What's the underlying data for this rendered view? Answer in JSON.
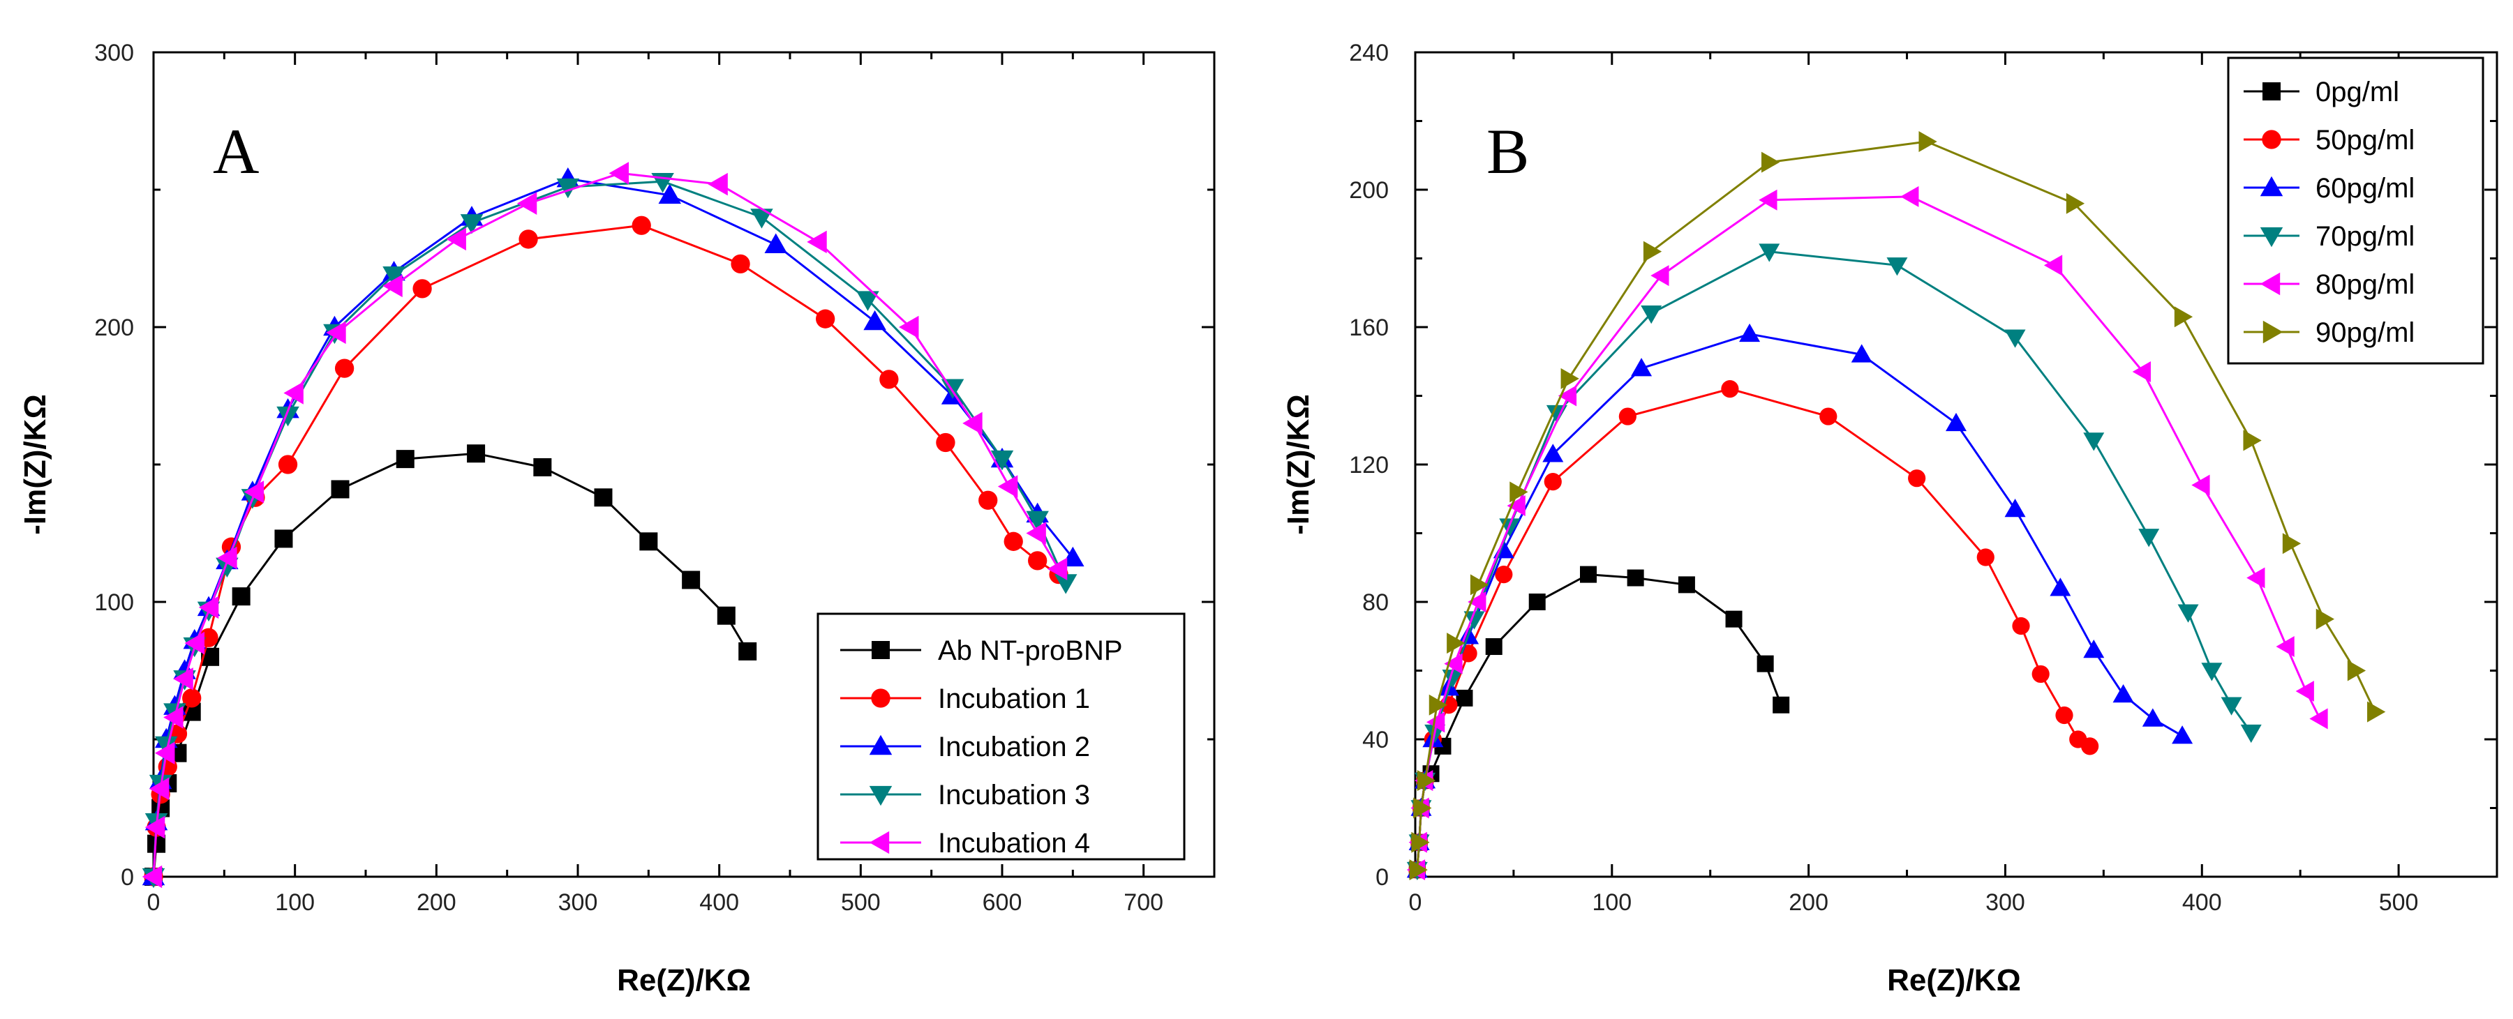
{
  "chart_data": [
    {
      "type": "scatter",
      "panel_label": "A",
      "xlabel": "Re(Z)/KΩ",
      "ylabel": "-Im(Z)/KΩ",
      "xlim": [
        0,
        750
      ],
      "ylim": [
        0,
        300
      ],
      "xticks": [
        0,
        100,
        200,
        300,
        400,
        500,
        600,
        700
      ],
      "yticks": [
        0,
        100,
        200,
        300
      ],
      "yticks_labeled": [
        0,
        100,
        200,
        300
      ],
      "legend_position": "bottom-right",
      "series": [
        {
          "name": "Ab NT-proBNP",
          "color": "#000000",
          "marker": "square",
          "x": [
            0,
            2,
            5,
            10,
            17,
            27,
            40,
            62,
            92,
            132,
            178,
            228,
            275,
            318,
            350,
            380,
            405,
            420
          ],
          "y": [
            0,
            12,
            25,
            34,
            45,
            60,
            80,
            102,
            123,
            141,
            152,
            154,
            149,
            138,
            122,
            108,
            95,
            82
          ]
        },
        {
          "name": "Incubation 1",
          "color": "#ff0000",
          "marker": "circle",
          "x": [
            0,
            2,
            5,
            10,
            17,
            27,
            39,
            55,
            72,
            95,
            135,
            190,
            265,
            345,
            415,
            475,
            520,
            560,
            590,
            608,
            625,
            640
          ],
          "y": [
            0,
            18,
            30,
            40,
            52,
            65,
            87,
            120,
            138,
            150,
            185,
            214,
            232,
            237,
            223,
            203,
            181,
            158,
            137,
            122,
            115,
            110
          ]
        },
        {
          "name": "Incubation 2",
          "color": "#0000ff",
          "marker": "triangle-up",
          "x": [
            0,
            2,
            5,
            9,
            15,
            22,
            29,
            39,
            52,
            70,
            95,
            128,
            170,
            225,
            293,
            365,
            440,
            510,
            565,
            600,
            625,
            650
          ],
          "y": [
            0,
            20,
            35,
            50,
            62,
            75,
            86,
            98,
            115,
            140,
            170,
            200,
            220,
            240,
            254,
            248,
            230,
            202,
            175,
            152,
            132,
            116
          ]
        },
        {
          "name": "Incubation 3",
          "color": "#008080",
          "marker": "triangle-down",
          "x": [
            0,
            2,
            5,
            9,
            15,
            22,
            29,
            39,
            52,
            70,
            95,
            128,
            170,
            225,
            293,
            360,
            430,
            505,
            565,
            600,
            625,
            645
          ],
          "y": [
            0,
            20,
            34,
            48,
            60,
            72,
            84,
            97,
            113,
            138,
            168,
            198,
            219,
            238,
            251,
            253,
            240,
            210,
            178,
            152,
            130,
            107
          ]
        },
        {
          "name": "Incubation 4",
          "color": "#ff00ff",
          "marker": "triangle-left",
          "x": [
            0,
            2,
            5,
            9,
            15,
            22,
            30,
            40,
            53,
            72,
            100,
            130,
            170,
            215,
            265,
            330,
            400,
            470,
            535,
            580,
            605,
            625,
            640
          ],
          "y": [
            0,
            18,
            32,
            45,
            58,
            72,
            85,
            98,
            116,
            140,
            176,
            198,
            215,
            232,
            245,
            256,
            252,
            231,
            200,
            165,
            142,
            125,
            112
          ]
        }
      ]
    },
    {
      "type": "scatter",
      "panel_label": "B",
      "xlabel": "Re(Z)/KΩ",
      "ylabel": "-Im(Z)/KΩ",
      "xlim": [
        0,
        550
      ],
      "ylim": [
        0,
        240
      ],
      "xticks": [
        0,
        100,
        200,
        300,
        400,
        500
      ],
      "yticks": [
        0,
        40,
        80,
        120,
        160,
        200,
        240
      ],
      "yticks_labeled": [
        0,
        40,
        80,
        120,
        160,
        200,
        240
      ],
      "legend_position": "top-right",
      "series": [
        {
          "name": "0pg/ml",
          "color": "#000000",
          "marker": "square",
          "x": [
            1,
            2,
            3,
            5,
            8,
            14,
            25,
            40,
            62,
            88,
            112,
            138,
            162,
            178,
            186
          ],
          "y": [
            2,
            10,
            20,
            28,
            30,
            38,
            52,
            67,
            80,
            88,
            87,
            85,
            75,
            62,
            50
          ]
        },
        {
          "name": "50pg/ml",
          "color": "#ff0000",
          "marker": "circle",
          "x": [
            1,
            2,
            3,
            5,
            9,
            17,
            27,
            45,
            70,
            108,
            160,
            210,
            255,
            290,
            308,
            318,
            330,
            337,
            343
          ],
          "y": [
            2,
            10,
            20,
            28,
            40,
            50,
            65,
            88,
            115,
            134,
            142,
            134,
            116,
            93,
            73,
            59,
            47,
            40,
            38
          ]
        },
        {
          "name": "60pg/ml",
          "color": "#0000ff",
          "marker": "triangle-up",
          "x": [
            1,
            2,
            3,
            5,
            9,
            17,
            27,
            45,
            70,
            115,
            170,
            227,
            275,
            305,
            328,
            345,
            360,
            375,
            390
          ],
          "y": [
            2,
            10,
            20,
            28,
            40,
            55,
            70,
            95,
            123,
            148,
            158,
            152,
            132,
            107,
            84,
            66,
            53,
            46,
            41
          ]
        },
        {
          "name": "70pg/ml",
          "color": "#008080",
          "marker": "triangle-down",
          "x": [
            1,
            2,
            3,
            5,
            10,
            19,
            30,
            48,
            72,
            120,
            180,
            245,
            305,
            345,
            373,
            393,
            405,
            415,
            425
          ],
          "y": [
            2,
            10,
            20,
            28,
            42,
            58,
            75,
            102,
            135,
            164,
            182,
            178,
            157,
            127,
            99,
            77,
            60,
            50,
            42
          ]
        },
        {
          "name": "80pg/ml",
          "color": "#ff00ff",
          "marker": "triangle-left",
          "x": [
            1,
            2,
            3,
            5,
            11,
            20,
            32,
            52,
            78,
            125,
            180,
            252,
            325,
            370,
            400,
            428,
            443,
            453,
            460
          ],
          "y": [
            2,
            10,
            20,
            28,
            45,
            62,
            80,
            108,
            140,
            175,
            197,
            198,
            178,
            147,
            114,
            87,
            67,
            54,
            46
          ]
        },
        {
          "name": "90pg/ml",
          "color": "#808000",
          "marker": "triangle-right",
          "x": [
            1,
            2,
            3,
            5,
            11,
            20,
            32,
            52,
            78,
            120,
            180,
            260,
            335,
            390,
            425,
            445,
            462,
            478,
            488
          ],
          "y": [
            2,
            10,
            20,
            28,
            50,
            68,
            85,
            112,
            145,
            182,
            208,
            214,
            196,
            163,
            127,
            97,
            75,
            60,
            48
          ]
        }
      ]
    }
  ]
}
